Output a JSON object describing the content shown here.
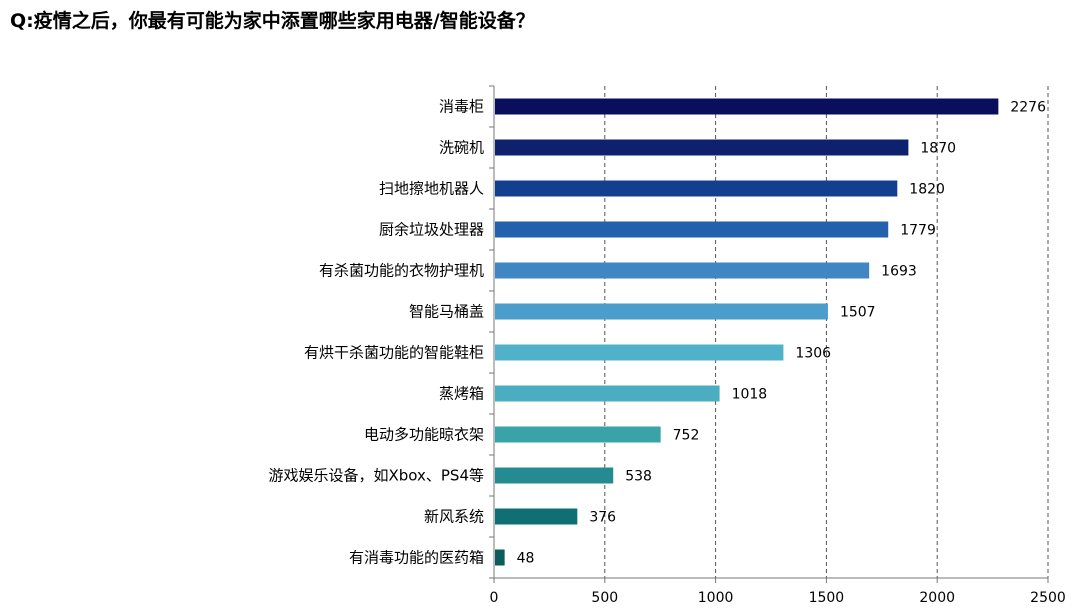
{
  "title": "Q:疫情之后，你最有可能为家中添置哪些家用电器/智能设备？",
  "chart_data": {
    "type": "bar",
    "orientation": "horizontal",
    "categories": [
      "消毒柜",
      "洗碗机",
      "扫地擦地机器人",
      "厨余垃圾处理器",
      "有杀菌功能的衣物护理机",
      "智能马桶盖",
      "有烘干杀菌功能的智能鞋柜",
      "蒸烤箱",
      "电动多功能晾衣架",
      "游戏娱乐设备，如Xbox、PS4等",
      "新风系统",
      "有消毒功能的医药箱"
    ],
    "values": [
      2276,
      1870,
      1820,
      1779,
      1693,
      1507,
      1306,
      1018,
      752,
      538,
      376,
      48
    ],
    "colors": [
      "#0a0f5c",
      "#0e216f",
      "#123f8e",
      "#2461ad",
      "#3f86c3",
      "#4b9ecb",
      "#4fb2c9",
      "#4aaec0",
      "#3aa3a8",
      "#238b91",
      "#0f6f72",
      "#0d5b5e"
    ],
    "xlim": [
      0,
      2500
    ],
    "xticks": [
      0,
      500,
      1000,
      1500,
      2000,
      2500
    ],
    "grid": "vertical dashed",
    "legend": "none",
    "xlabel": "",
    "ylabel": ""
  }
}
